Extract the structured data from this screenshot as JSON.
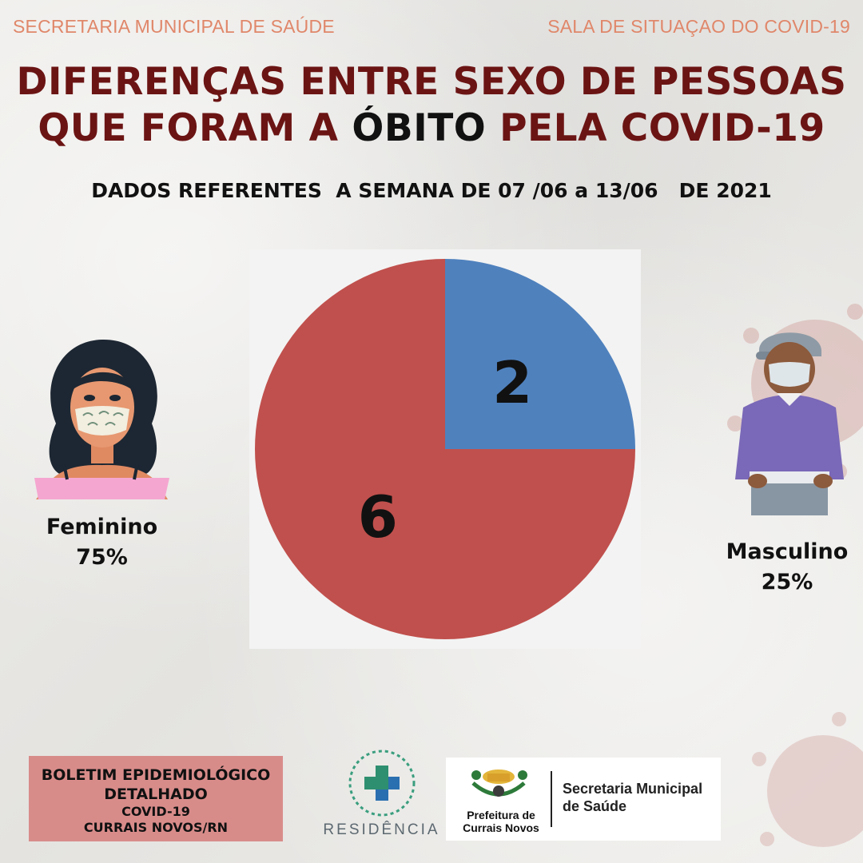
{
  "header": {
    "left": "SECRETARIA MUNICIPAL DE SAÚDE",
    "right": "SALA DE SITUAÇAO DO COVID-19"
  },
  "title": {
    "line1": "DIFERENÇAS ENTRE SEXO DE PESSOAS",
    "line2_pre": "QUE FORAM A ",
    "line2_highlight": "ÓBITO",
    "line2_post": " PELA COVID-19"
  },
  "subtitle": "DADOS REFERENTES  A SEMANA DE 07 /06 a 13/06   DE 2021",
  "chart_data": {
    "type": "pie",
    "categories": [
      "Masculino",
      "Feminino"
    ],
    "values": [
      2,
      6
    ],
    "data_labels": [
      "2",
      "6"
    ],
    "percent_labels": [
      "25%",
      "75%"
    ],
    "colors": [
      "#4f81bd",
      "#c0504d"
    ],
    "start_angle_deg": 0,
    "direction": "clockwise",
    "legend": "none"
  },
  "female": {
    "label": "Feminino",
    "percent": "75%"
  },
  "male": {
    "label": "Masculino",
    "percent": "25%"
  },
  "footer": {
    "boletim_line1": "BOLETIM EPIDEMIOLÓGICO",
    "boletim_line2": "DETALHADO",
    "boletim_line3": "COVID-19",
    "boletim_line4": "CURRAIS NOVOS/RN",
    "residencia": "RESIDÊNCIA",
    "prefeitura_line1": "Prefeitura de",
    "prefeitura_line2": "Currais Novos",
    "secretaria_line1": "Secretaria Municipal",
    "secretaria_line2": "de Saúde"
  },
  "colors": {
    "header": "#e0876a",
    "title": "#6b1414",
    "boletim_bg": "#d88c8a"
  }
}
